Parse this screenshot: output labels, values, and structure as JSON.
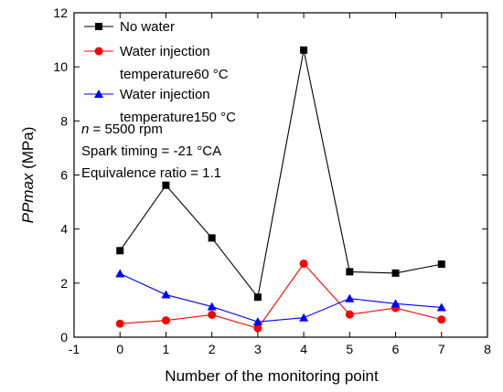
{
  "chart_data": {
    "type": "line",
    "xlabel": "Number of the monitoring point",
    "ylabel_parts": [
      {
        "text": "PPmax",
        "italic": true
      },
      {
        "text": " (MPa)",
        "italic": false
      }
    ],
    "xlim": [
      -1,
      8
    ],
    "ylim": [
      0,
      12
    ],
    "xticks": [
      -1,
      0,
      1,
      2,
      3,
      4,
      5,
      6,
      7,
      8
    ],
    "yticks": [
      0,
      2,
      4,
      6,
      8,
      10,
      12
    ],
    "x": [
      0,
      1,
      2,
      3,
      4,
      5,
      6,
      7
    ],
    "legend_position": "top-left",
    "series": [
      {
        "name": "No water",
        "marker": "square",
        "color": "#000000",
        "values": [
          3.2,
          5.62,
          3.67,
          1.48,
          10.62,
          2.42,
          2.37,
          2.7
        ]
      },
      {
        "name_lines": [
          "Water injection",
          "temperature60 °C"
        ],
        "marker": "circle",
        "color": "#ff0000",
        "values": [
          0.5,
          0.62,
          0.83,
          0.33,
          2.72,
          0.84,
          1.08,
          0.65
        ]
      },
      {
        "name_lines": [
          "Water injection",
          "temperature150 °C"
        ],
        "marker": "triangle",
        "color": "#0000ff",
        "values": [
          2.35,
          1.57,
          1.13,
          0.57,
          0.72,
          1.43,
          1.24,
          1.1
        ]
      }
    ],
    "annotations": [
      [
        {
          "text": "n",
          "italic": true
        },
        {
          "text": " = 5500 rpm",
          "italic": false
        }
      ],
      [
        {
          "text": "Spark timing = -21 °CA",
          "italic": false
        }
      ],
      [
        {
          "text": "Equivalence ratio = 1.1",
          "italic": false
        }
      ]
    ]
  }
}
